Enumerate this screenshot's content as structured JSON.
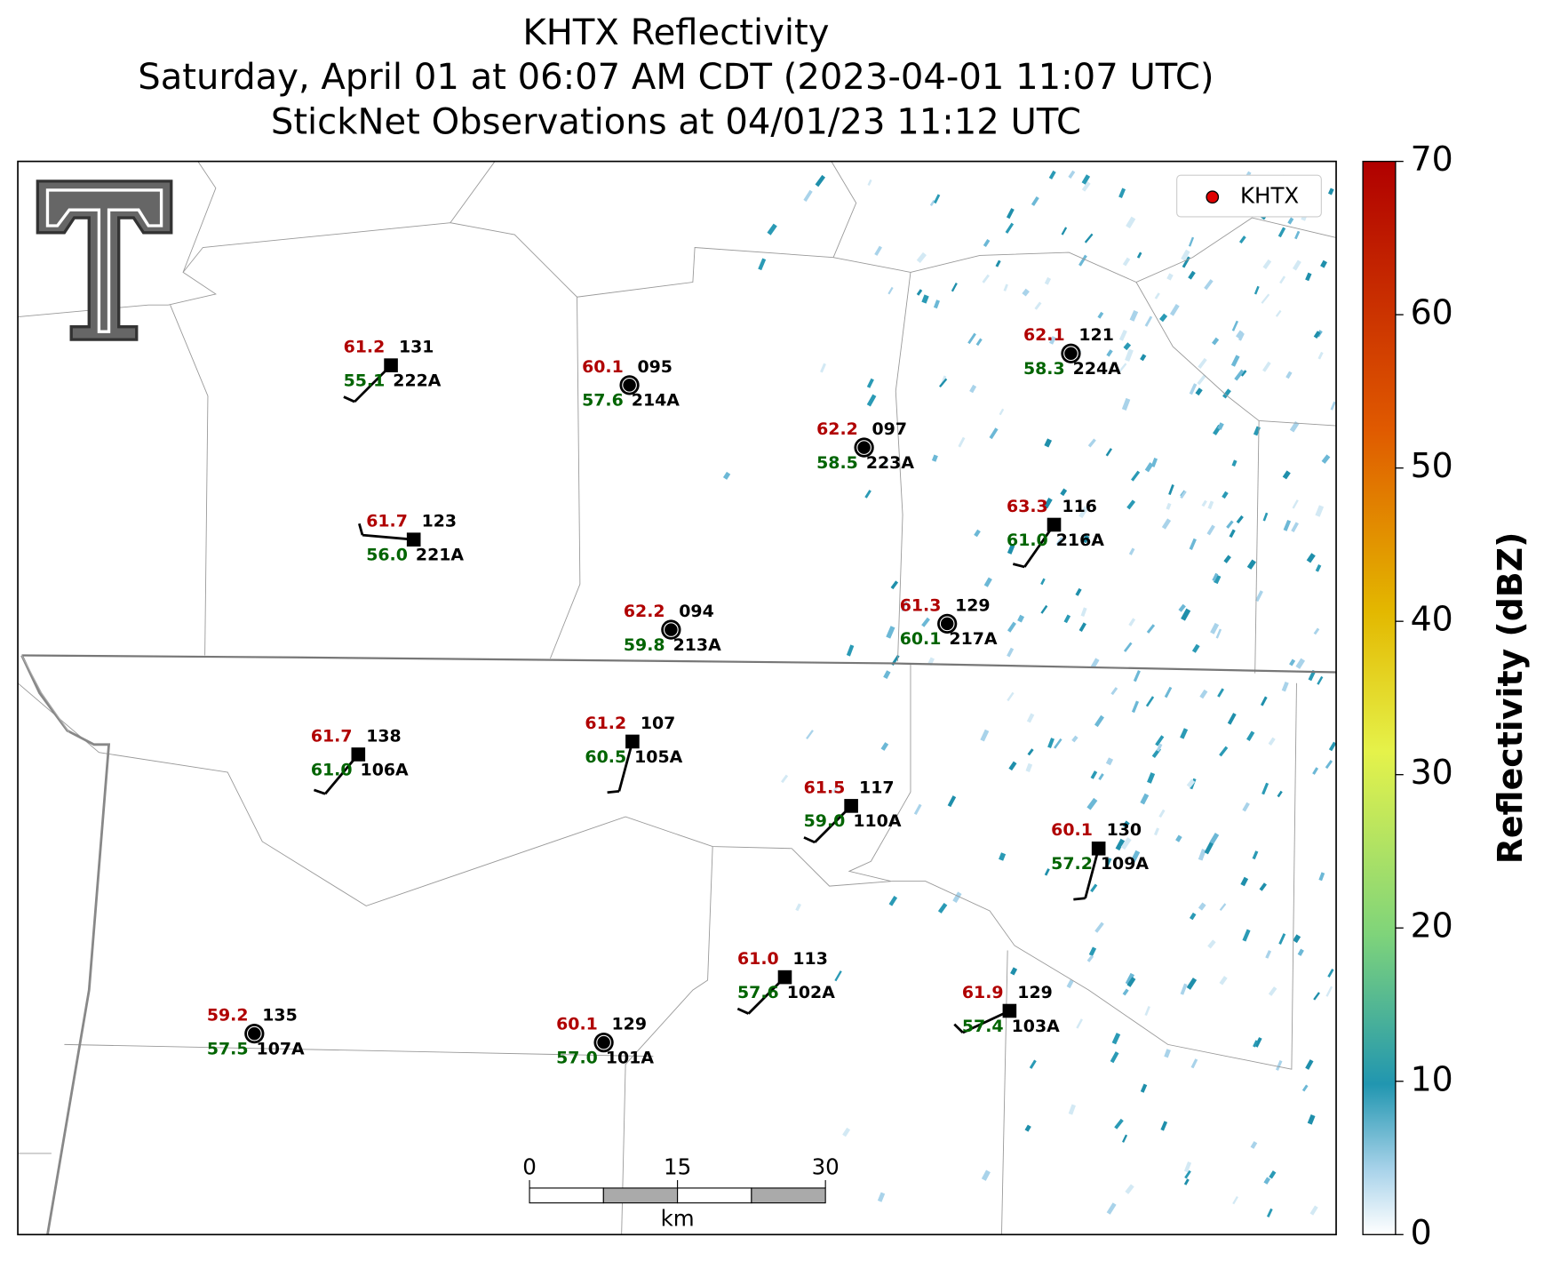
{
  "title": [
    "KHTX Reflectivity",
    "Saturday, April 01 at 06:07 AM CDT (2023-04-01 11:07 UTC)",
    "StickNet Observations at 04/01/23 11:12 UTC"
  ],
  "legend": {
    "label": "KHTX",
    "color": "#e00000"
  },
  "colorbar": {
    "label": "Reflectivity (dBZ)",
    "lim": [
      0,
      70
    ],
    "ticks": [
      0,
      10,
      20,
      30,
      40,
      50,
      60,
      70
    ]
  },
  "scale_bar": {
    "unit": "km",
    "lim": [
      0,
      30
    ],
    "ticks": [
      0,
      15,
      30
    ]
  },
  "stations": [
    {
      "code": "131",
      "id": "222A",
      "temp": "61.2",
      "dew": "55.1",
      "marker": "square",
      "wind_from_deg": 225
    },
    {
      "code": "095",
      "id": "214A",
      "temp": "60.1",
      "dew": "57.6",
      "marker": "circle",
      "wind_from_deg": null
    },
    {
      "code": "097",
      "id": "223A",
      "temp": "62.2",
      "dew": "58.5",
      "marker": "circle",
      "wind_from_deg": null
    },
    {
      "code": "121",
      "id": "224A",
      "temp": "62.1",
      "dew": "58.3",
      "marker": "circle",
      "wind_from_deg": null
    },
    {
      "code": "123",
      "id": "221A",
      "temp": "61.7",
      "dew": "56.0",
      "marker": "square",
      "wind_from_deg": 275
    },
    {
      "code": "116",
      "id": "216A",
      "temp": "63.3",
      "dew": "61.0",
      "marker": "square",
      "wind_from_deg": 215
    },
    {
      "code": "094",
      "id": "213A",
      "temp": "62.2",
      "dew": "59.8",
      "marker": "circle",
      "wind_from_deg": null
    },
    {
      "code": "129",
      "id": "217A",
      "temp": "61.3",
      "dew": "60.1",
      "marker": "circle",
      "wind_from_deg": null
    },
    {
      "code": "138",
      "id": "106A",
      "temp": "61.7",
      "dew": "61.0",
      "marker": "square",
      "wind_from_deg": 220
    },
    {
      "code": "107",
      "id": "105A",
      "temp": "61.2",
      "dew": "60.5",
      "marker": "square",
      "wind_from_deg": 195
    },
    {
      "code": "117",
      "id": "110A",
      "temp": "61.5",
      "dew": "59.0",
      "marker": "square",
      "wind_from_deg": 225
    },
    {
      "code": "130",
      "id": "109A",
      "temp": "60.1",
      "dew": "57.2",
      "marker": "square",
      "wind_from_deg": 195
    },
    {
      "code": "113",
      "id": "102A",
      "temp": "61.0",
      "dew": "57.6",
      "marker": "square",
      "wind_from_deg": 225
    },
    {
      "code": "129",
      "id": "103A",
      "temp": "61.9",
      "dew": "57.4",
      "marker": "square",
      "wind_from_deg": 245
    },
    {
      "code": "135",
      "id": "107A",
      "temp": "59.2",
      "dew": "57.5",
      "marker": "circle",
      "wind_from_deg": null
    },
    {
      "code": "129",
      "id": "101A",
      "temp": "60.1",
      "dew": "57.0",
      "marker": "circle",
      "wind_from_deg": null
    }
  ]
}
